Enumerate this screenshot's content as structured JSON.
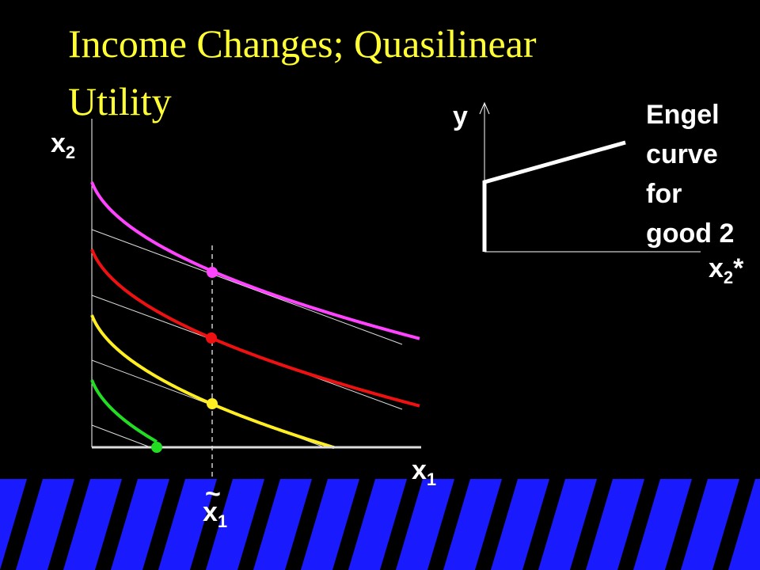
{
  "title": [
    "Income Changes; Quasilinear",
    "Utility"
  ],
  "left_panel": {
    "y_axis_label": {
      "text": "x",
      "subscript": "2"
    },
    "x_axis_label": {
      "text": "x",
      "subscript": "1"
    },
    "marker_label": {
      "accent": "~",
      "text": "x",
      "subscript": "1"
    }
  },
  "right_panel": {
    "y_axis_label": "y",
    "x_axis_label": {
      "text": "x",
      "subscript": "2",
      "suffix": "*"
    },
    "annotation": [
      "Engel",
      "curve",
      "for",
      "good 2"
    ]
  }
}
